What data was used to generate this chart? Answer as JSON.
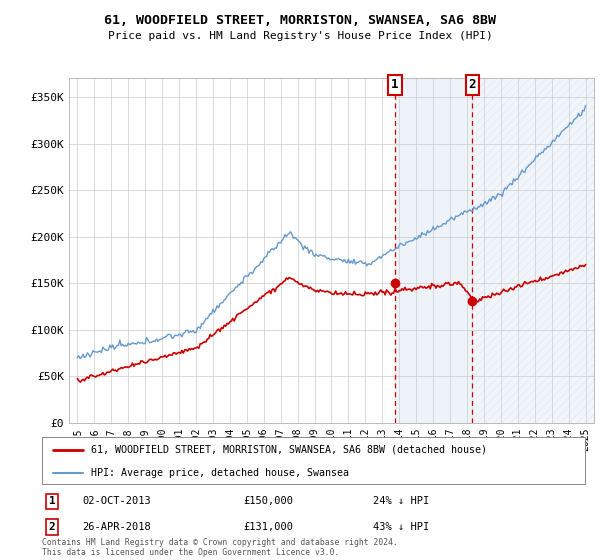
{
  "title": "61, WOODFIELD STREET, MORRISTON, SWANSEA, SA6 8BW",
  "subtitle": "Price paid vs. HM Land Registry's House Price Index (HPI)",
  "property_label": "61, WOODFIELD STREET, MORRISTON, SWANSEA, SA6 8BW (detached house)",
  "hpi_label": "HPI: Average price, detached house, Swansea",
  "footnote": "Contains HM Land Registry data © Crown copyright and database right 2024.\nThis data is licensed under the Open Government Licence v3.0.",
  "sale1": {
    "date": "02-OCT-2013",
    "price": 150000,
    "hpi_diff": "24% ↓ HPI",
    "x": 2013.75
  },
  "sale2": {
    "date": "26-APR-2018",
    "price": 131000,
    "hpi_diff": "43% ↓ HPI",
    "x": 2018.32
  },
  "property_color": "#cc0000",
  "hpi_color": "#6699cc",
  "background_color": "#ffffff",
  "plot_bg": "#ffffff",
  "shading_color": "#dce8f5",
  "ylim": [
    0,
    370000
  ],
  "xlim": [
    1994.5,
    2025.5
  ],
  "yticks": [
    0,
    50000,
    100000,
    150000,
    200000,
    250000,
    300000,
    350000
  ],
  "ytick_labels": [
    "£0",
    "£50K",
    "£100K",
    "£150K",
    "£200K",
    "£250K",
    "£300K",
    "£350K"
  ],
  "xticks": [
    1995,
    1996,
    1997,
    1998,
    1999,
    2000,
    2001,
    2002,
    2003,
    2004,
    2005,
    2006,
    2007,
    2008,
    2009,
    2010,
    2011,
    2012,
    2013,
    2014,
    2015,
    2016,
    2017,
    2018,
    2019,
    2020,
    2021,
    2022,
    2023,
    2024,
    2025
  ]
}
